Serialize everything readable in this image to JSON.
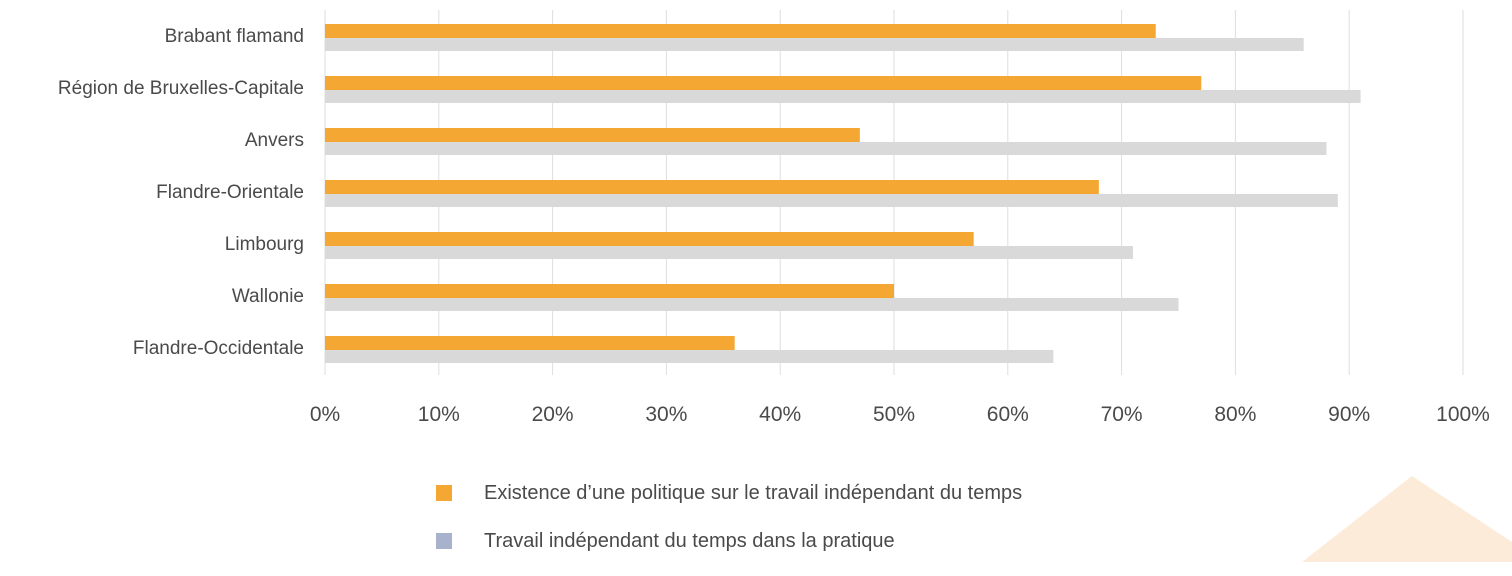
{
  "chart_data": {
    "type": "bar",
    "orientation": "horizontal",
    "categories": [
      "Brabant flamand",
      "Région de Bruxelles-Capitale",
      "Anvers",
      "Flandre-Orientale",
      "Limbourg",
      "Wallonie",
      "Flandre-Occidentale"
    ],
    "series": [
      {
        "name": "Existence d’une politique sur le travail indépendant du temps",
        "color": "#f5a733",
        "values": [
          73,
          77,
          47,
          68,
          57,
          50,
          36
        ]
      },
      {
        "name": "Travail indépendant du temps dans la pratique",
        "color": "#d9d9d9",
        "legend_color": "#a8b2cc",
        "values": [
          86,
          91,
          88,
          89,
          71,
          75,
          64
        ]
      }
    ],
    "xlim": [
      0,
      100
    ],
    "ticks": [
      "0%",
      "10%",
      "20%",
      "30%",
      "40%",
      "50%",
      "60%",
      "70%",
      "80%",
      "90%",
      "100%"
    ],
    "grid": true,
    "legend_position": "bottom",
    "title": "",
    "xlabel": "",
    "ylabel": ""
  }
}
